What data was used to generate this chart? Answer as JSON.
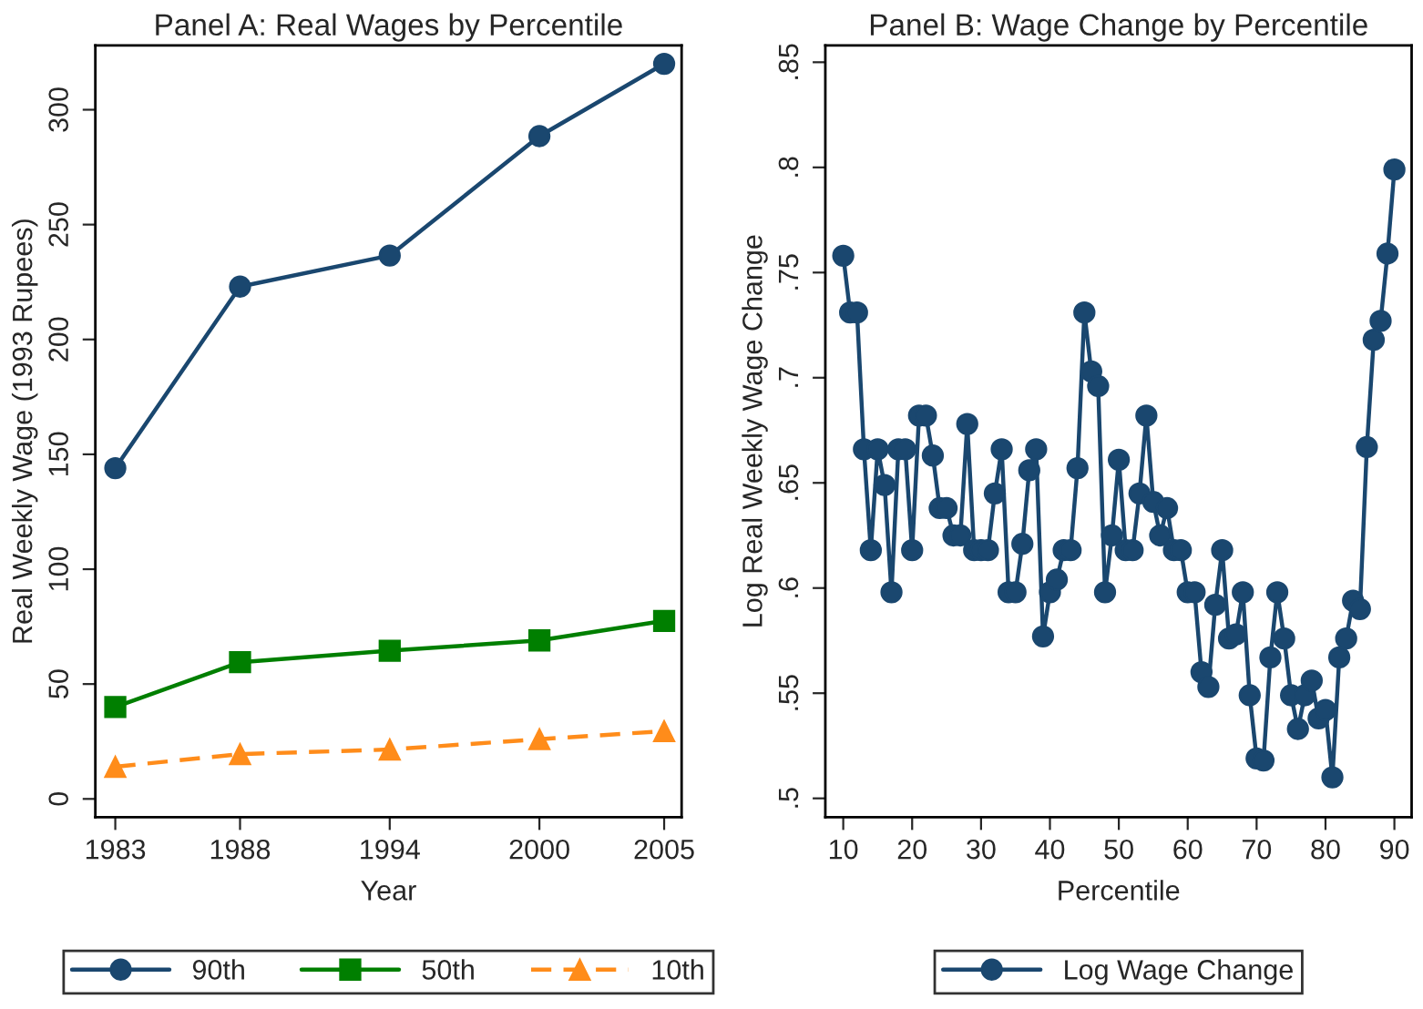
{
  "chart_data": [
    {
      "type": "line",
      "title": "Panel A: Real Wages by Percentile",
      "xlabel": "Year",
      "ylabel": "Real Weekly Wage (1993 Rupees)",
      "x": [
        1983,
        1988,
        1994,
        2000,
        2005
      ],
      "series": [
        {
          "name": "90th",
          "color": "#1a476f",
          "marker": "circle",
          "line_style": "solid",
          "values": [
            144,
            223,
            236.5,
            288.5,
            320
          ]
        },
        {
          "name": "50th",
          "color": "#007f00",
          "marker": "square",
          "line_style": "solid",
          "values": [
            40,
            59.5,
            64.5,
            69,
            77.5
          ]
        },
        {
          "name": "10th",
          "color": "#ff8c1a",
          "marker": "triangle",
          "line_style": "dashed",
          "values": [
            14,
            19.5,
            21.5,
            26,
            29.5
          ]
        }
      ],
      "xlim": [
        1982.2,
        2005.7
      ],
      "xticks": [
        1983,
        1988,
        1994,
        2000,
        2005
      ],
      "ylim": [
        -8,
        328
      ],
      "yticks": [
        0,
        50,
        100,
        150,
        200,
        250,
        300
      ],
      "grid": false,
      "legend": "bottom"
    },
    {
      "type": "line",
      "title": "Panel B: Wage Change by Percentile",
      "xlabel": "Percentile",
      "ylabel": "Log Real Weekly Wage Change",
      "x": [
        10,
        11,
        12,
        13,
        14,
        15,
        16,
        17,
        18,
        19,
        20,
        21,
        22,
        23,
        24,
        25,
        26,
        27,
        28,
        29,
        30,
        31,
        32,
        33,
        34,
        35,
        36,
        37,
        38,
        39,
        40,
        41,
        42,
        43,
        44,
        45,
        46,
        47,
        48,
        49,
        50,
        51,
        52,
        53,
        54,
        55,
        56,
        57,
        58,
        59,
        60,
        61,
        62,
        63,
        64,
        65,
        66,
        67,
        68,
        69,
        70,
        71,
        72,
        73,
        74,
        75,
        76,
        77,
        78,
        79,
        80,
        81,
        82,
        83,
        84,
        85,
        86,
        87,
        88,
        89,
        90
      ],
      "series": [
        {
          "name": "Log Wage Change",
          "color": "#1a476f",
          "marker": "circle",
          "line_style": "solid",
          "values": [
            0.758,
            0.731,
            0.731,
            0.666,
            0.618,
            0.666,
            0.649,
            0.598,
            0.666,
            0.666,
            0.618,
            0.682,
            0.682,
            0.663,
            0.638,
            0.638,
            0.625,
            0.625,
            0.678,
            0.618,
            0.618,
            0.618,
            0.645,
            0.666,
            0.598,
            0.598,
            0.621,
            0.656,
            0.666,
            0.577,
            0.598,
            0.604,
            0.618,
            0.618,
            0.657,
            0.731,
            0.703,
            0.696,
            0.598,
            0.625,
            0.661,
            0.618,
            0.618,
            0.645,
            0.682,
            0.641,
            0.625,
            0.638,
            0.618,
            0.618,
            0.598,
            0.598,
            0.56,
            0.553,
            0.592,
            0.618,
            0.576,
            0.578,
            0.598,
            0.549,
            0.519,
            0.518,
            0.567,
            0.598,
            0.576,
            0.549,
            0.533,
            0.549,
            0.556,
            0.538,
            0.542,
            0.51,
            0.567,
            0.576,
            0.594,
            0.59,
            0.667,
            0.718,
            0.727,
            0.759,
            0.799
          ]
        }
      ],
      "xlim": [
        7.4,
        92.5
      ],
      "xticks": [
        10,
        20,
        30,
        40,
        50,
        60,
        70,
        80,
        90
      ],
      "ylim": [
        0.491,
        0.858
      ],
      "yticks": [
        {
          "value": 0.5,
          "label": ".5"
        },
        {
          "value": 0.55,
          "label": ".55"
        },
        {
          "value": 0.6,
          "label": ".6"
        },
        {
          "value": 0.65,
          "label": ".65"
        },
        {
          "value": 0.7,
          "label": ".7"
        },
        {
          "value": 0.75,
          "label": ".75"
        },
        {
          "value": 0.8,
          "label": ".8"
        },
        {
          "value": 0.85,
          "label": ".85"
        }
      ],
      "grid": false,
      "legend": "bottom"
    }
  ]
}
